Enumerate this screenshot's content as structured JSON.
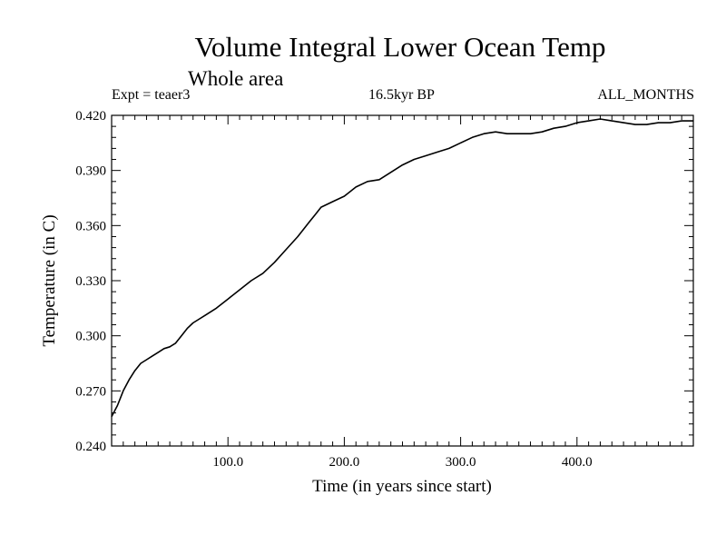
{
  "chart_data": {
    "type": "line",
    "title": "Volume Integral Lower Ocean Temp",
    "subtitle": "Whole area",
    "experiment_label": "Expt = teaer3",
    "period_label": "16.5kyr BP",
    "season_label": "ALL_MONTHS",
    "xlabel": "Time (in years since start)",
    "ylabel": "Temperature (in C)",
    "xlim": [
      0,
      500
    ],
    "ylim": [
      0.24,
      0.42
    ],
    "x_ticks": [
      100,
      200,
      300,
      400
    ],
    "x_tick_labels": [
      "100.0",
      "200.0",
      "300.0",
      "400.0"
    ],
    "y_ticks": [
      0.24,
      0.27,
      0.3,
      0.33,
      0.36,
      0.39,
      0.42
    ],
    "y_tick_labels": [
      "0.240",
      "0.270",
      "0.300",
      "0.330",
      "0.360",
      "0.390",
      "0.420"
    ],
    "grid": false,
    "series": [
      {
        "name": "Temperature",
        "color": "#000000",
        "x": [
          0,
          5,
          10,
          15,
          20,
          25,
          30,
          35,
          40,
          45,
          50,
          55,
          60,
          65,
          70,
          75,
          80,
          90,
          100,
          110,
          120,
          130,
          140,
          150,
          160,
          170,
          175,
          180,
          190,
          200,
          210,
          220,
          230,
          240,
          250,
          260,
          270,
          280,
          290,
          300,
          310,
          320,
          330,
          340,
          350,
          360,
          370,
          380,
          390,
          400,
          410,
          420,
          430,
          440,
          450,
          460,
          470,
          480,
          490,
          500
        ],
        "values": [
          0.256,
          0.262,
          0.27,
          0.276,
          0.281,
          0.285,
          0.287,
          0.289,
          0.291,
          0.293,
          0.294,
          0.296,
          0.3,
          0.304,
          0.307,
          0.309,
          0.311,
          0.315,
          0.32,
          0.325,
          0.33,
          0.334,
          0.34,
          0.347,
          0.354,
          0.362,
          0.366,
          0.37,
          0.373,
          0.376,
          0.381,
          0.384,
          0.385,
          0.389,
          0.393,
          0.396,
          0.398,
          0.4,
          0.402,
          0.405,
          0.408,
          0.41,
          0.411,
          0.41,
          0.41,
          0.41,
          0.411,
          0.413,
          0.414,
          0.416,
          0.417,
          0.418,
          0.417,
          0.416,
          0.415,
          0.415,
          0.416,
          0.416,
          0.417,
          0.417
        ]
      }
    ]
  }
}
